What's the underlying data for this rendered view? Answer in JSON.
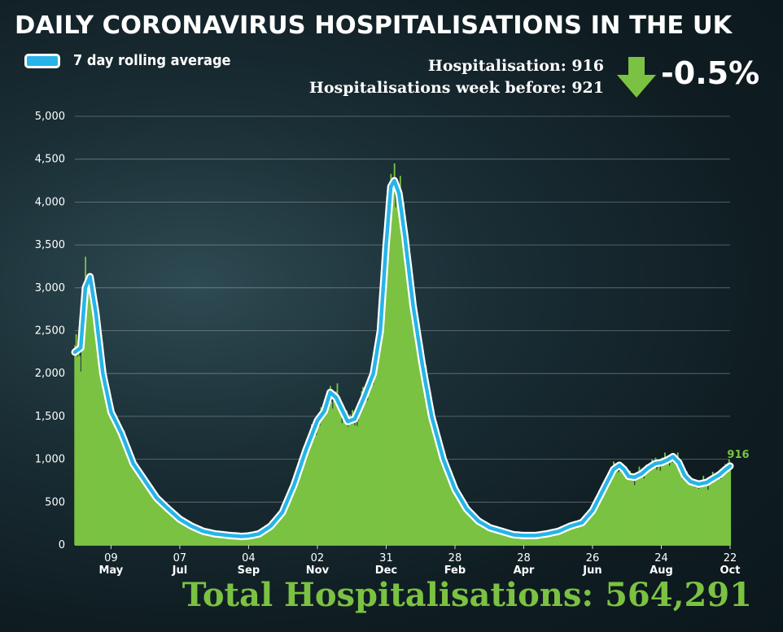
{
  "header": {
    "title": "DAILY CORONAVIRUS HOSPITALISATIONS IN THE UK",
    "legend_label": "7 day rolling average",
    "hospitalisation_line": "Hospitalisation: 916",
    "week_before_line": "Hospitalisations week before: 921",
    "change": "-0.5%",
    "arrow_icon": "down-arrow-icon",
    "arrow_color": "#7bc242"
  },
  "footer": {
    "total": "Total Hospitalisations: 564,291"
  },
  "colors": {
    "bars": "#7bc242",
    "line": "#27b4e8",
    "line_outline": "#ffffff",
    "background": "#14252b"
  },
  "chart_data": {
    "type": "bar",
    "title": "DAILY CORONAVIRUS HOSPITALISATIONS IN THE UK",
    "ylim": [
      0,
      5000
    ],
    "y_ticks": [
      "0",
      "500",
      "1,000",
      "1,500",
      "2,000",
      "2,500",
      "3,000",
      "3,500",
      "4,000",
      "4,500",
      "5,000"
    ],
    "y_tick_values": [
      0,
      500,
      1000,
      1500,
      2000,
      2500,
      3000,
      3500,
      4000,
      4500,
      5000
    ],
    "x_ticks": [
      {
        "day": "09",
        "month": "May",
        "index": 31
      },
      {
        "day": "07",
        "month": "Jul",
        "index": 90
      },
      {
        "day": "04",
        "month": "Sep",
        "index": 149
      },
      {
        "day": "02",
        "month": "Nov",
        "index": 208
      },
      {
        "day": "31",
        "month": "Dec",
        "index": 267
      },
      {
        "day": "28",
        "month": "Feb",
        "index": 326
      },
      {
        "day": "28",
        "month": "Apr",
        "index": 385
      },
      {
        "day": "26",
        "month": "Jun",
        "index": 444
      },
      {
        "day": "24",
        "month": "Aug",
        "index": 503
      },
      {
        "day": "22",
        "month": "Oct",
        "index": 562
      }
    ],
    "n_days": 563,
    "rolling_average_keypoints": [
      [
        0,
        2250
      ],
      [
        5,
        2300
      ],
      [
        9,
        3000
      ],
      [
        13,
        3130
      ],
      [
        18,
        2700
      ],
      [
        24,
        2000
      ],
      [
        31,
        1550
      ],
      [
        40,
        1300
      ],
      [
        50,
        950
      ],
      [
        60,
        750
      ],
      [
        70,
        550
      ],
      [
        80,
        420
      ],
      [
        90,
        300
      ],
      [
        100,
        220
      ],
      [
        110,
        160
      ],
      [
        120,
        130
      ],
      [
        133,
        110
      ],
      [
        143,
        100
      ],
      [
        149,
        105
      ],
      [
        158,
        130
      ],
      [
        168,
        220
      ],
      [
        178,
        380
      ],
      [
        188,
        700
      ],
      [
        198,
        1100
      ],
      [
        208,
        1450
      ],
      [
        214,
        1560
      ],
      [
        219,
        1780
      ],
      [
        224,
        1720
      ],
      [
        229,
        1580
      ],
      [
        234,
        1440
      ],
      [
        240,
        1470
      ],
      [
        248,
        1720
      ],
      [
        256,
        2000
      ],
      [
        262,
        2500
      ],
      [
        267,
        3500
      ],
      [
        271,
        4180
      ],
      [
        274,
        4250
      ],
      [
        278,
        4100
      ],
      [
        283,
        3600
      ],
      [
        290,
        2800
      ],
      [
        298,
        2100
      ],
      [
        306,
        1500
      ],
      [
        316,
        1000
      ],
      [
        326,
        650
      ],
      [
        336,
        420
      ],
      [
        346,
        280
      ],
      [
        356,
        200
      ],
      [
        366,
        160
      ],
      [
        376,
        120
      ],
      [
        385,
        110
      ],
      [
        395,
        110
      ],
      [
        405,
        130
      ],
      [
        415,
        160
      ],
      [
        425,
        220
      ],
      [
        435,
        260
      ],
      [
        444,
        400
      ],
      [
        450,
        560
      ],
      [
        456,
        720
      ],
      [
        462,
        880
      ],
      [
        467,
        930
      ],
      [
        471,
        880
      ],
      [
        475,
        800
      ],
      [
        480,
        790
      ],
      [
        486,
        830
      ],
      [
        492,
        900
      ],
      [
        498,
        950
      ],
      [
        503,
        960
      ],
      [
        508,
        990
      ],
      [
        513,
        1030
      ],
      [
        518,
        960
      ],
      [
        523,
        810
      ],
      [
        528,
        740
      ],
      [
        535,
        710
      ],
      [
        542,
        730
      ],
      [
        548,
        780
      ],
      [
        553,
        820
      ],
      [
        558,
        880
      ],
      [
        562,
        920
      ]
    ],
    "end_value_label": "916"
  }
}
